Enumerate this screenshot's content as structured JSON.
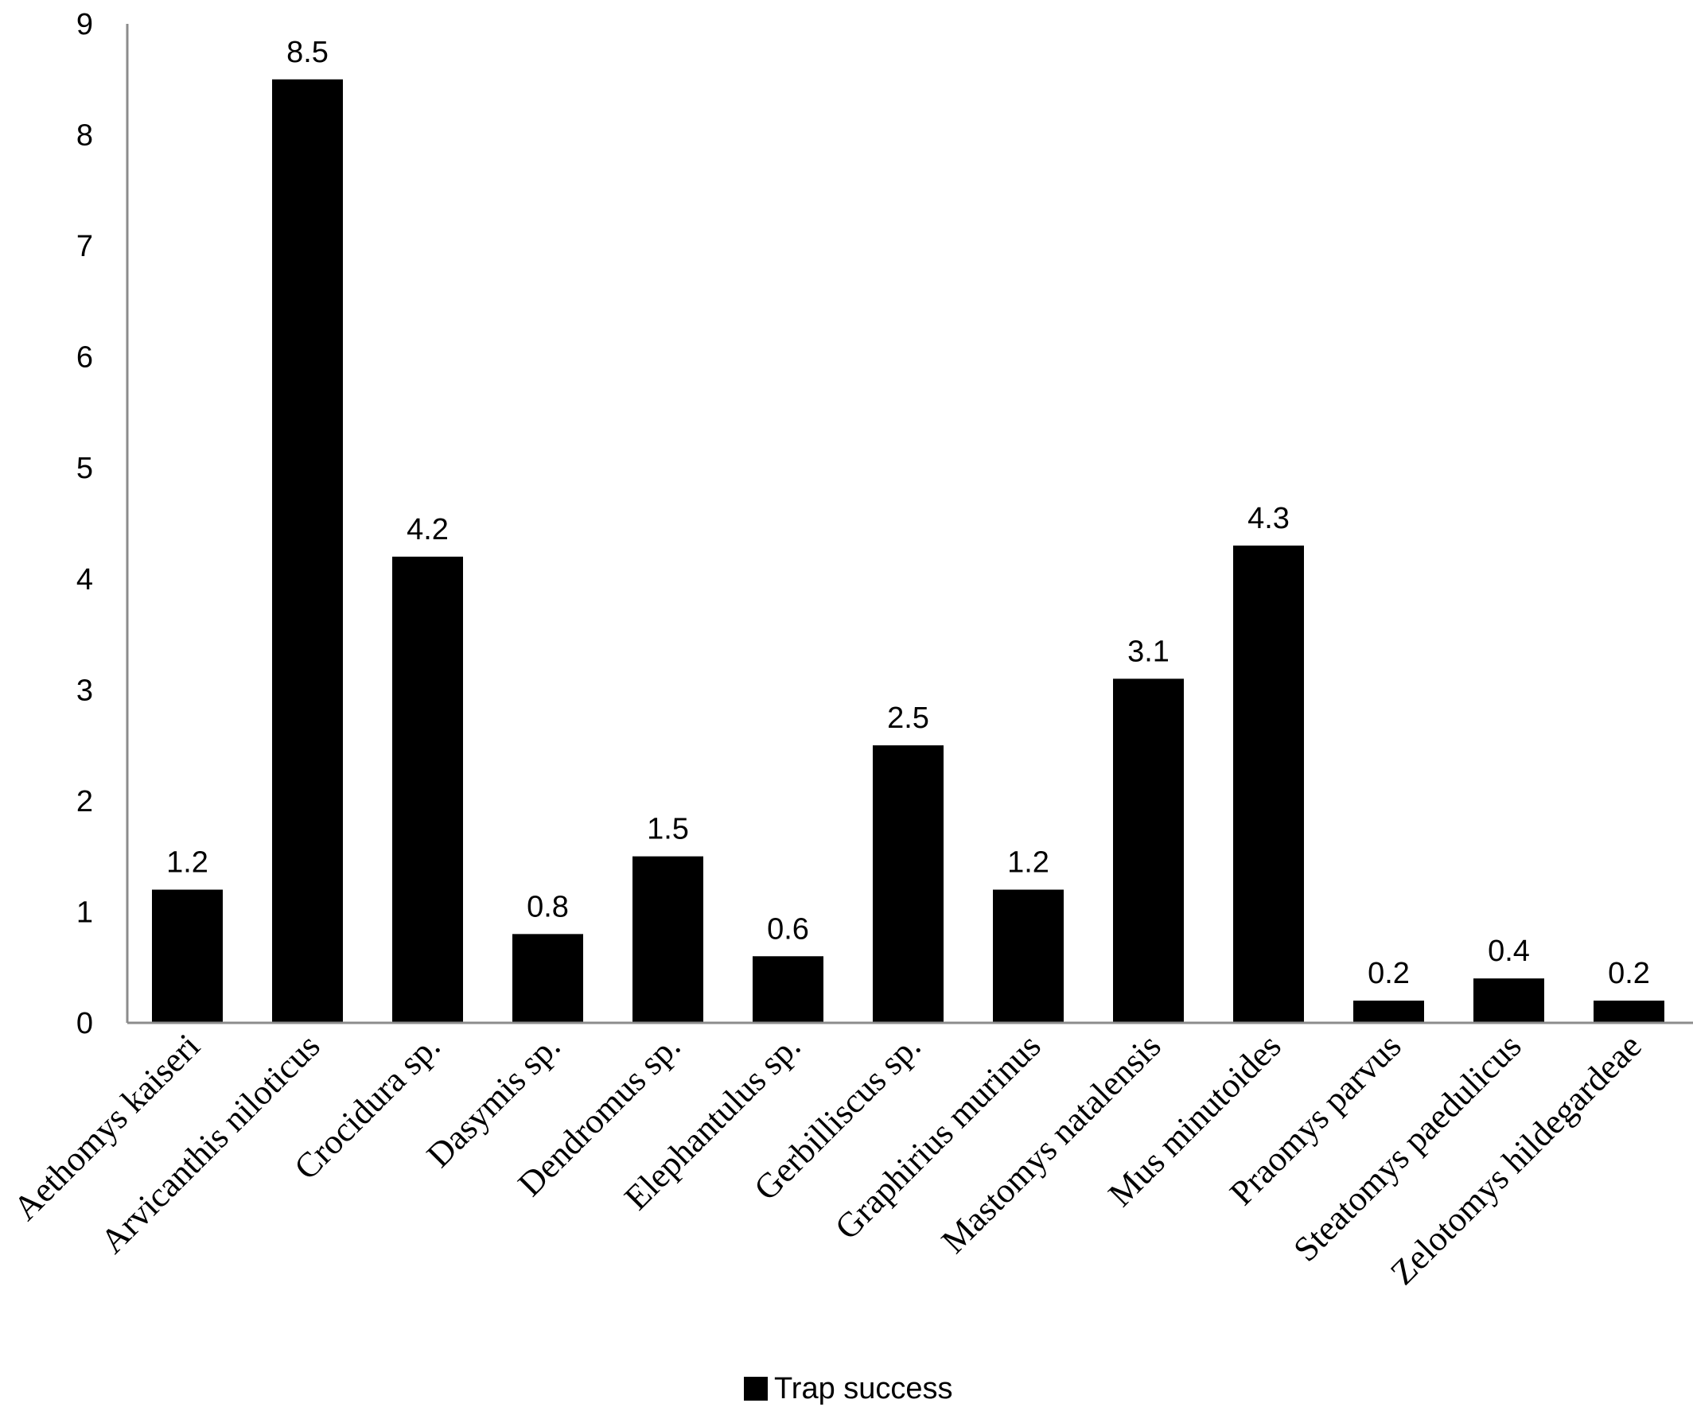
{
  "chart_data": {
    "type": "bar",
    "categories": [
      "Aethomys kaiseri",
      "Arvicanthis niloticus",
      "Crocidura sp.",
      "Dasymis sp.",
      "Dendromus sp.",
      "Elephantulus sp.",
      "Gerbilliscus sp.",
      "Graphirius murinus",
      "Mastomys natalensis",
      "Mus minutoides",
      "Praomys parvus",
      "Steatomys paedulicus",
      "Zelotomys hildegardeae"
    ],
    "series": [
      {
        "name": "Trap success",
        "values": [
          1.2,
          8.5,
          4.2,
          0.8,
          1.5,
          0.6,
          2.5,
          1.2,
          3.1,
          4.3,
          0.2,
          0.4,
          0.2
        ],
        "data_labels": [
          "1.2",
          "8.5",
          "4.2",
          "0.8",
          "1.5",
          "0.6",
          "2.5",
          "1.2",
          "3.1",
          "4.3",
          "0.2",
          "0.4",
          "0.2"
        ],
        "color": "#000000"
      }
    ],
    "yticks": [
      "0",
      "1",
      "2",
      "3",
      "4",
      "5",
      "6",
      "7",
      "8",
      "9"
    ],
    "ylim": [
      0,
      9
    ],
    "xlabel": "",
    "ylabel": "",
    "title": "",
    "grid": false,
    "legend_position": "bottom-center",
    "axis_color": "#8c8c8c"
  }
}
